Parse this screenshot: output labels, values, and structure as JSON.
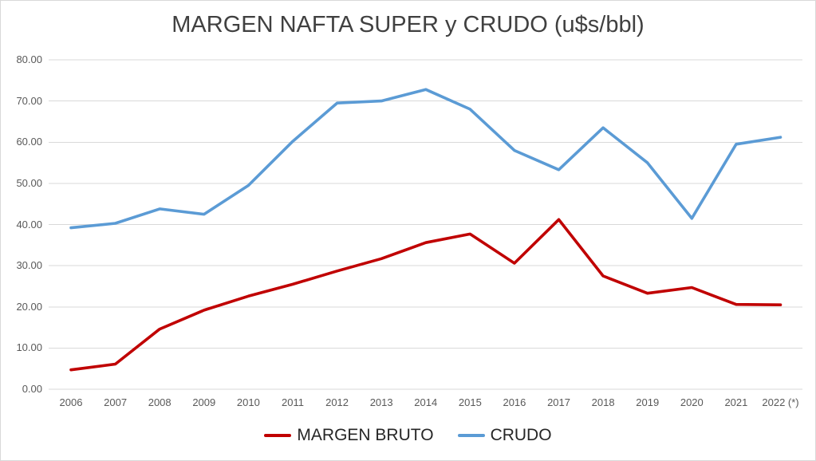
{
  "title": "MARGEN NAFTA SUPER y CRUDO (u$s/bbl)",
  "colors": {
    "margen_bruto": "#C00000",
    "crudo": "#5B9BD5",
    "gridline": "#D9D9D9",
    "axis_text": "#595959",
    "title_text": "#404040",
    "legend_text": "#262626",
    "frame_border": "#D9D9D9",
    "background": "#FFFFFF"
  },
  "chart_data": {
    "type": "line",
    "title": "MARGEN NAFTA SUPER y CRUDO (u$s/bbl)",
    "categories": [
      "2006",
      "2007",
      "2008",
      "2009",
      "2010",
      "2011",
      "2012",
      "2013",
      "2014",
      "2015",
      "2016",
      "2017",
      "2018",
      "2019",
      "2020",
      "2021",
      "2022 (*)"
    ],
    "series": [
      {
        "name": "MARGEN BRUTO",
        "color": "#C00000",
        "values": [
          4.7,
          6.1,
          14.6,
          19.2,
          22.6,
          25.5,
          28.7,
          31.7,
          35.6,
          37.7,
          30.6,
          41.2,
          27.5,
          23.3,
          24.7,
          20.6,
          20.5
        ]
      },
      {
        "name": "CRUDO",
        "color": "#5B9BD5",
        "values": [
          39.2,
          40.3,
          43.8,
          42.5,
          49.5,
          60.2,
          69.5,
          70.0,
          72.8,
          68.0,
          58.0,
          53.3,
          63.5,
          55.0,
          41.5,
          59.5,
          61.2
        ]
      }
    ],
    "xlabel": "",
    "ylabel": "",
    "ylim": [
      0,
      80
    ],
    "ytick_labels": [
      "0.00",
      "10.00",
      "20.00",
      "30.00",
      "40.00",
      "50.00",
      "60.00",
      "70.00",
      "80.00"
    ],
    "grid": true,
    "legend_position": "bottom"
  }
}
